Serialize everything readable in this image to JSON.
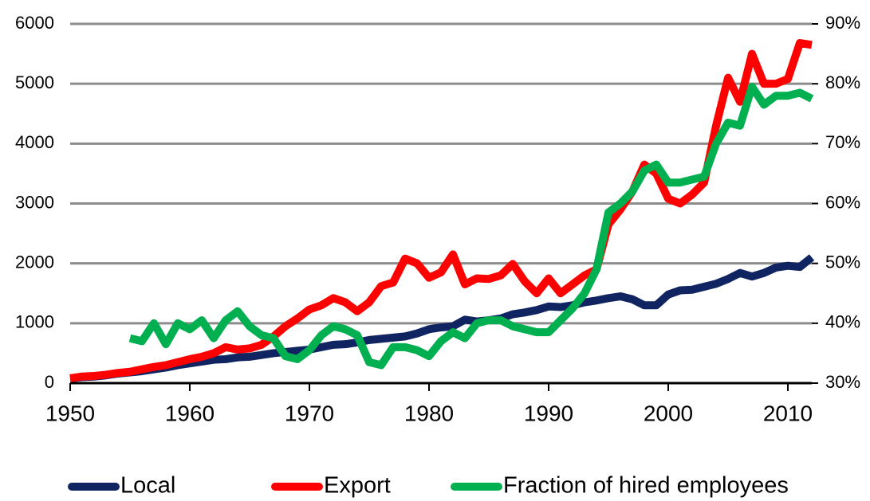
{
  "chart_data": {
    "type": "line",
    "x": [
      1950,
      1951,
      1952,
      1953,
      1954,
      1955,
      1956,
      1957,
      1958,
      1959,
      1960,
      1961,
      1962,
      1963,
      1964,
      1965,
      1966,
      1967,
      1968,
      1969,
      1970,
      1971,
      1972,
      1973,
      1974,
      1975,
      1976,
      1977,
      1978,
      1979,
      1980,
      1981,
      1982,
      1983,
      1984,
      1985,
      1986,
      1987,
      1988,
      1989,
      1990,
      1991,
      1992,
      1993,
      1994,
      1995,
      1996,
      1997,
      1998,
      1999,
      2000,
      2001,
      2002,
      2003,
      2004,
      2005,
      2006,
      2007,
      2008,
      2009,
      2010,
      2011,
      2012
    ],
    "xlim": [
      1950,
      2012
    ],
    "xticks": [
      1950,
      1960,
      1970,
      1980,
      1990,
      2000,
      2010
    ],
    "ylim": [
      0,
      6000
    ],
    "yticks": [
      0,
      1000,
      2000,
      3000,
      4000,
      5000,
      6000
    ],
    "y2lim": [
      30,
      90
    ],
    "y2ticks": [
      {
        "value": 30,
        "label": "30%"
      },
      {
        "value": 40,
        "label": "40%"
      },
      {
        "value": 50,
        "label": "50%"
      },
      {
        "value": 60,
        "label": "60%"
      },
      {
        "value": 70,
        "label": "70%"
      },
      {
        "value": 80,
        "label": "80%"
      },
      {
        "value": 90,
        "label": "90%"
      }
    ],
    "grid": true,
    "series": [
      {
        "name": "Local",
        "color": "#0f2461",
        "values": [
          80,
          100,
          110,
          130,
          160,
          180,
          200,
          230,
          260,
          300,
          330,
          360,
          390,
          400,
          430,
          440,
          470,
          500,
          520,
          540,
          560,
          600,
          640,
          650,
          680,
          720,
          740,
          760,
          780,
          830,
          900,
          930,
          950,
          1060,
          1030,
          1050,
          1080,
          1150,
          1180,
          1220,
          1280,
          1270,
          1300,
          1350,
          1380,
          1420,
          1450,
          1400,
          1300,
          1300,
          1480,
          1550,
          1560,
          1610,
          1660,
          1740,
          1840,
          1780,
          1840,
          1930,
          1960,
          1940,
          2100
        ]
      },
      {
        "name": "Export",
        "color": "#ff0000",
        "values": [
          80,
          110,
          120,
          140,
          170,
          190,
          230,
          270,
          300,
          350,
          400,
          440,
          500,
          600,
          560,
          580,
          640,
          780,
          950,
          1080,
          1230,
          1300,
          1420,
          1350,
          1200,
          1350,
          1620,
          1680,
          2080,
          2000,
          1760,
          1850,
          2150,
          1650,
          1750,
          1740,
          1800,
          1990,
          1700,
          1500,
          1750,
          1500,
          1650,
          1800,
          1900,
          2650,
          2900,
          3200,
          3650,
          3500,
          3080,
          3000,
          3150,
          3350,
          4300,
          5100,
          4700,
          5500,
          5000,
          5000,
          5080,
          5680,
          5650
        ]
      },
      {
        "name": "Fraction of hired employees",
        "color": "#00b050",
        "axis": "y2",
        "values": [
          null,
          null,
          null,
          null,
          null,
          37.5,
          37,
          40,
          36.5,
          40,
          39,
          40.5,
          37.5,
          40.5,
          42,
          39.5,
          38,
          37.5,
          34.5,
          34,
          35.5,
          38,
          39.5,
          39,
          38,
          33.5,
          33,
          36,
          36,
          35.5,
          34.5,
          37,
          38.5,
          37.5,
          40,
          40.5,
          40.5,
          39.5,
          39,
          38.5,
          38.5,
          40.5,
          42.5,
          45,
          49,
          58.5,
          60,
          62,
          65.5,
          66.5,
          63.5,
          63.5,
          64,
          64.5,
          70,
          73.5,
          73,
          79.5,
          76.5,
          78,
          78,
          78.5,
          77.5
        ]
      }
    ]
  }
}
